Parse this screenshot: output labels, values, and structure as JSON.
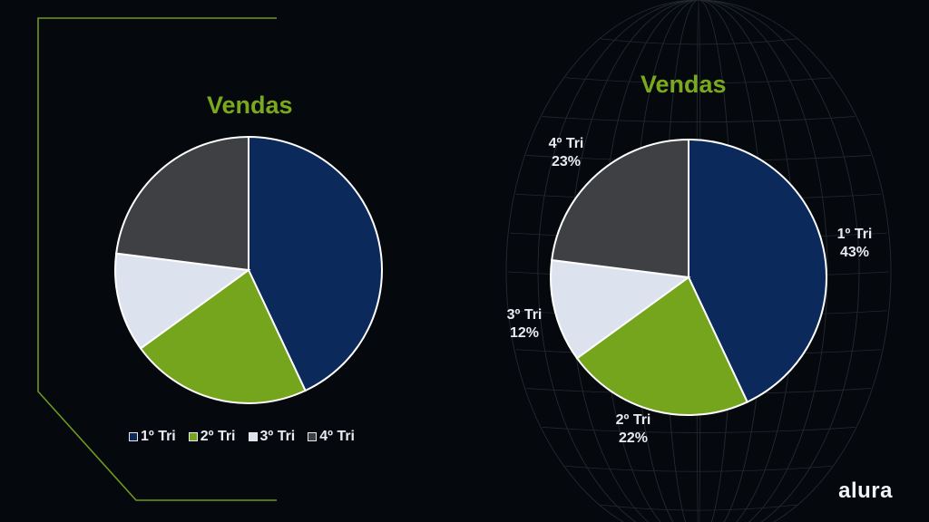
{
  "brand": "alura",
  "colors": {
    "accent": "#7aa91e",
    "q1": "#0b2a5b",
    "q2": "#75a51d",
    "q3": "#dde3ee",
    "q4": "#3f4043",
    "background": "#05080d",
    "slice_border": "#ffffff"
  },
  "chart_data": [
    {
      "type": "pie",
      "title": "Vendas",
      "categories": [
        "1º Tri",
        "2º Tri",
        "3º Tri",
        "4º Tri"
      ],
      "values": [
        43,
        22,
        12,
        23
      ],
      "legend": "bottom",
      "data_labels": false
    },
    {
      "type": "pie",
      "title": "Vendas",
      "categories": [
        "1º Tri",
        "2º Tri",
        "3º Tri",
        "4º Tri"
      ],
      "values": [
        43,
        22,
        12,
        23
      ],
      "value_labels": [
        "43%",
        "22%",
        "12%",
        "23%"
      ],
      "legend": "none",
      "data_labels": true
    }
  ]
}
